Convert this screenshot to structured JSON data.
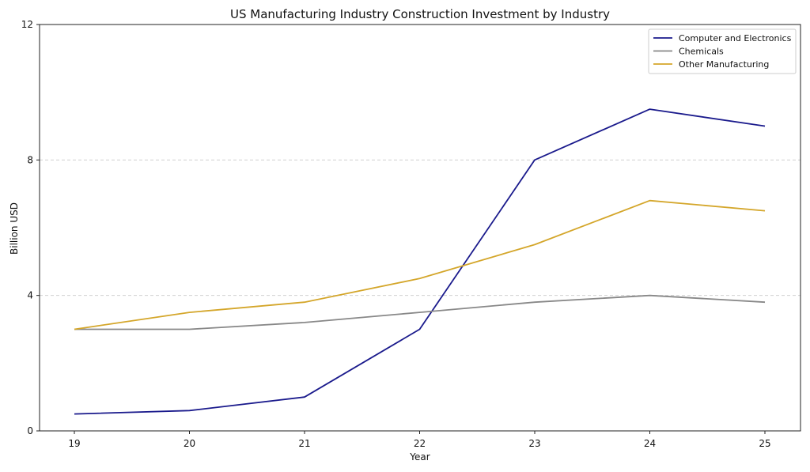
{
  "chart_data": {
    "type": "line",
    "title": "US Manufacturing Industry Construction Investment by Industry",
    "xlabel": "Year",
    "ylabel": "Billion USD",
    "x": [
      "19",
      "20",
      "21",
      "22",
      "23",
      "24",
      "25"
    ],
    "ylim": [
      0,
      12
    ],
    "yticks": [
      "0",
      "4",
      "8",
      "12"
    ],
    "grid": "horizontal dashed at 4 and 8",
    "legend_position": "top-right",
    "series": [
      {
        "name": "Computer and Electronics",
        "color": "#1a1a8c",
        "values": [
          0.5,
          0.6,
          1.0,
          3.0,
          8.0,
          9.5,
          9.0
        ]
      },
      {
        "name": "Chemicals",
        "color": "#888888",
        "values": [
          3.0,
          3.0,
          3.2,
          3.5,
          3.8,
          4.0,
          3.8
        ]
      },
      {
        "name": "Other Manufacturing",
        "color": "#d4a62a",
        "values": [
          3.0,
          3.5,
          3.8,
          4.5,
          5.5,
          6.8,
          6.5
        ]
      }
    ]
  }
}
